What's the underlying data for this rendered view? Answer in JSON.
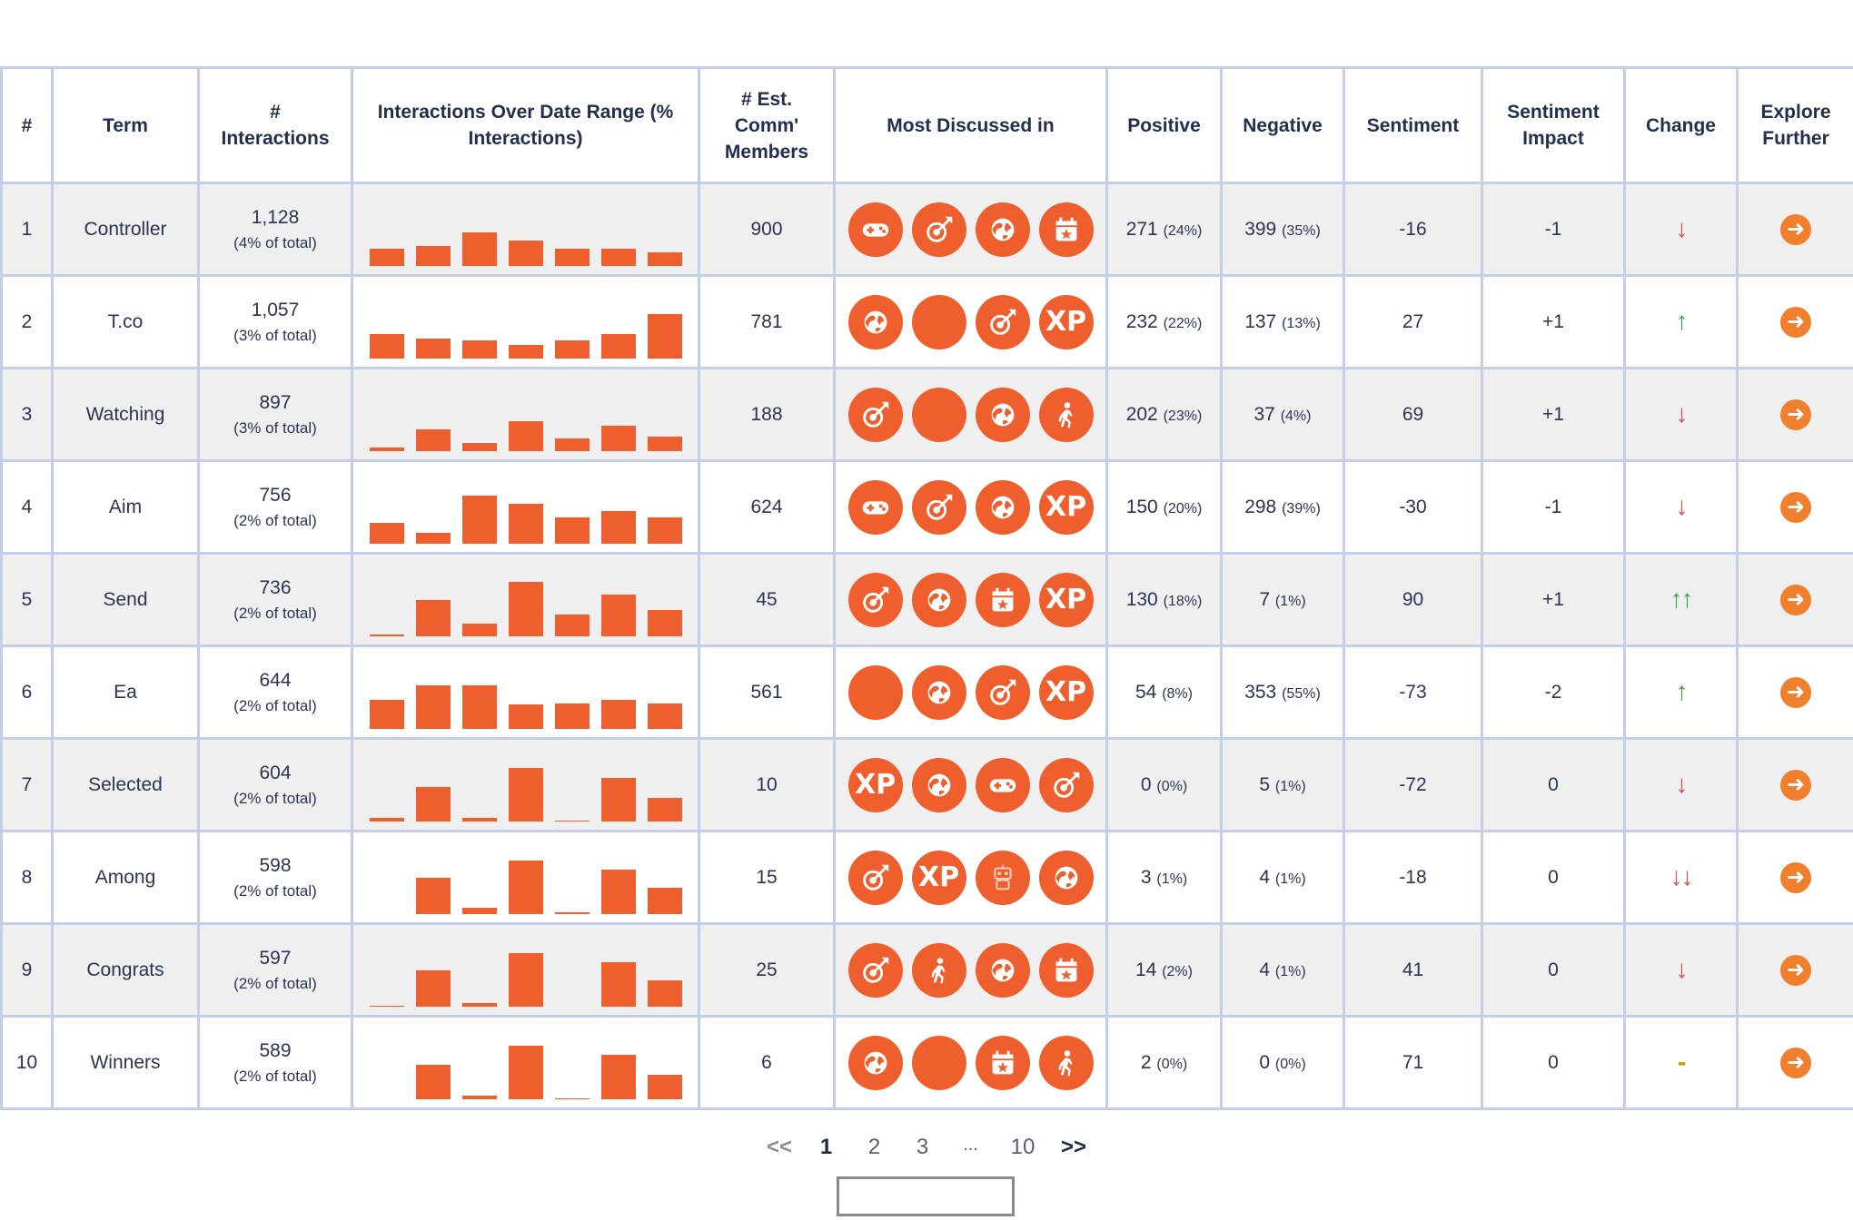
{
  "headers": {
    "rank": "#",
    "term": "Term",
    "interactions": "# Interactions",
    "trend": "Interactions Over Date Range (% Interactions)",
    "members": "# Est. Comm' Members",
    "discussed": "Most Discussed in",
    "positive": "Positive",
    "negative": "Negative",
    "sentiment": "Sentiment",
    "impact": "Sentiment Impact",
    "change": "Change",
    "explore": "Explore Further"
  },
  "colors": {
    "accent": "#ef5f2e",
    "negative": "#e64c46",
    "positive": "#3aa447",
    "neutral": "#b8a200",
    "border": "#c3cfe6"
  },
  "rows": [
    {
      "rank": "1",
      "term": "Controller",
      "interactions": "1,128",
      "share": "(4% of total)",
      "trend": [
        17,
        20,
        34,
        26,
        17,
        17,
        14
      ],
      "members": "900",
      "icons": [
        "gamepad-icon",
        "target-icon",
        "globe-icon",
        "calendar-icon"
      ],
      "positive": "271",
      "positive_pct": "(24%)",
      "negative": "399",
      "negative_pct": "(35%)",
      "sentiment": "-16",
      "sentiment_class": "red",
      "impact": "-1",
      "impact_class": "red",
      "change": "↓",
      "change_class": "red"
    },
    {
      "rank": "2",
      "term": "T.co",
      "interactions": "1,057",
      "share": "(3% of total)",
      "trend": [
        25,
        20,
        18,
        14,
        18,
        25,
        45
      ],
      "members": "781",
      "icons": [
        "globe-icon",
        "circle-icon",
        "target-icon",
        "xp-icon"
      ],
      "positive": "232",
      "positive_pct": "(22%)",
      "negative": "137",
      "negative_pct": "(13%)",
      "sentiment": "27",
      "sentiment_class": "green",
      "impact": "+1",
      "impact_class": "green",
      "change": "↑",
      "change_class": "green"
    },
    {
      "rank": "3",
      "term": "Watching",
      "interactions": "897",
      "share": "(3% of total)",
      "trend": [
        4,
        22,
        8,
        30,
        13,
        26,
        15
      ],
      "members": "188",
      "icons": [
        "target-icon",
        "circle-icon",
        "globe-icon",
        "walker-icon"
      ],
      "positive": "202",
      "positive_pct": "(23%)",
      "negative": "37",
      "negative_pct": "(4%)",
      "sentiment": "69",
      "sentiment_class": "green",
      "impact": "+1",
      "impact_class": "green",
      "change": "↓",
      "change_class": "red"
    },
    {
      "rank": "4",
      "term": "Aim",
      "interactions": "756",
      "share": "(2% of total)",
      "trend": [
        21,
        11,
        49,
        40,
        27,
        33,
        27
      ],
      "members": "624",
      "icons": [
        "gamepad-icon",
        "target-icon",
        "globe-icon",
        "xp-icon"
      ],
      "positive": "150",
      "positive_pct": "(20%)",
      "negative": "298",
      "negative_pct": "(39%)",
      "sentiment": "-30",
      "sentiment_class": "red",
      "impact": "-1",
      "impact_class": "red",
      "change": "↓",
      "change_class": "red"
    },
    {
      "rank": "5",
      "term": "Send",
      "interactions": "736",
      "share": "(2% of total)",
      "trend": [
        2,
        37,
        13,
        55,
        22,
        42,
        27
      ],
      "members": "45",
      "icons": [
        "target-icon",
        "globe-icon",
        "calendar-icon",
        "xp-icon"
      ],
      "positive": "130",
      "positive_pct": "(18%)",
      "negative": "7",
      "negative_pct": "(1%)",
      "sentiment": "90",
      "sentiment_class": "green",
      "impact": "+1",
      "impact_class": "green",
      "change": "↑↑",
      "change_class": "green"
    },
    {
      "rank": "6",
      "term": "Ea",
      "interactions": "644",
      "share": "(2% of total)",
      "trend": [
        29,
        44,
        44,
        25,
        26,
        29,
        26
      ],
      "members": "561",
      "icons": [
        "circle-icon",
        "globe-icon",
        "target-icon",
        "xp-icon"
      ],
      "positive": "54",
      "positive_pct": "(8%)",
      "negative": "353",
      "negative_pct": "(55%)",
      "sentiment": "-73",
      "sentiment_class": "red",
      "impact": "-2",
      "impact_class": "red",
      "change": "↑",
      "change_class": "green"
    },
    {
      "rank": "7",
      "term": "Selected",
      "interactions": "604",
      "share": "(2% of total)",
      "trend": [
        4,
        35,
        4,
        54,
        1,
        44,
        24
      ],
      "members": "10",
      "icons": [
        "xp-icon",
        "globe-icon",
        "gamepad-icon",
        "target-icon"
      ],
      "positive": "0",
      "positive_pct": "(0%)",
      "negative": "5",
      "negative_pct": "(1%)",
      "sentiment": "-72",
      "sentiment_class": "red",
      "impact": "0",
      "impact_class": "olive",
      "change": "↓",
      "change_class": "red"
    },
    {
      "rank": "8",
      "term": "Among",
      "interactions": "598",
      "share": "(2% of total)",
      "trend": [
        0,
        37,
        6,
        54,
        2,
        45,
        27
      ],
      "members": "15",
      "icons": [
        "target-icon",
        "xp-icon",
        "robot-icon",
        "globe-icon"
      ],
      "positive": "3",
      "positive_pct": "(1%)",
      "negative": "4",
      "negative_pct": "(1%)",
      "sentiment": "-18",
      "sentiment_class": "red",
      "impact": "0",
      "impact_class": "olive",
      "change": "↓↓",
      "change_class": "red"
    },
    {
      "rank": "9",
      "term": "Congrats",
      "interactions": "597",
      "share": "(2% of total)",
      "trend": [
        1,
        37,
        4,
        54,
        0,
        45,
        27
      ],
      "members": "25",
      "icons": [
        "target-icon",
        "walker-icon",
        "globe-icon",
        "calendar-icon"
      ],
      "positive": "14",
      "positive_pct": "(2%)",
      "negative": "4",
      "negative_pct": "(1%)",
      "sentiment": "41",
      "sentiment_class": "green",
      "impact": "0",
      "impact_class": "olive",
      "change": "↓",
      "change_class": "red"
    },
    {
      "rank": "10",
      "term": "Winners",
      "interactions": "589",
      "share": "(2% of total)",
      "trend": [
        0,
        35,
        4,
        54,
        1,
        45,
        25
      ],
      "members": "6",
      "icons": [
        "globe-icon",
        "circle-icon",
        "calendar-icon",
        "walker-icon"
      ],
      "positive": "2",
      "positive_pct": "(0%)",
      "negative": "0",
      "negative_pct": "(0%)",
      "sentiment": "71",
      "sentiment_class": "green",
      "impact": "0",
      "impact_class": "olive",
      "change": "-",
      "change_class": "olive"
    }
  ],
  "pagination": {
    "first": "<<",
    "pages": [
      "1",
      "2",
      "3",
      "...",
      "10"
    ],
    "current": "1",
    "last": ">>"
  }
}
